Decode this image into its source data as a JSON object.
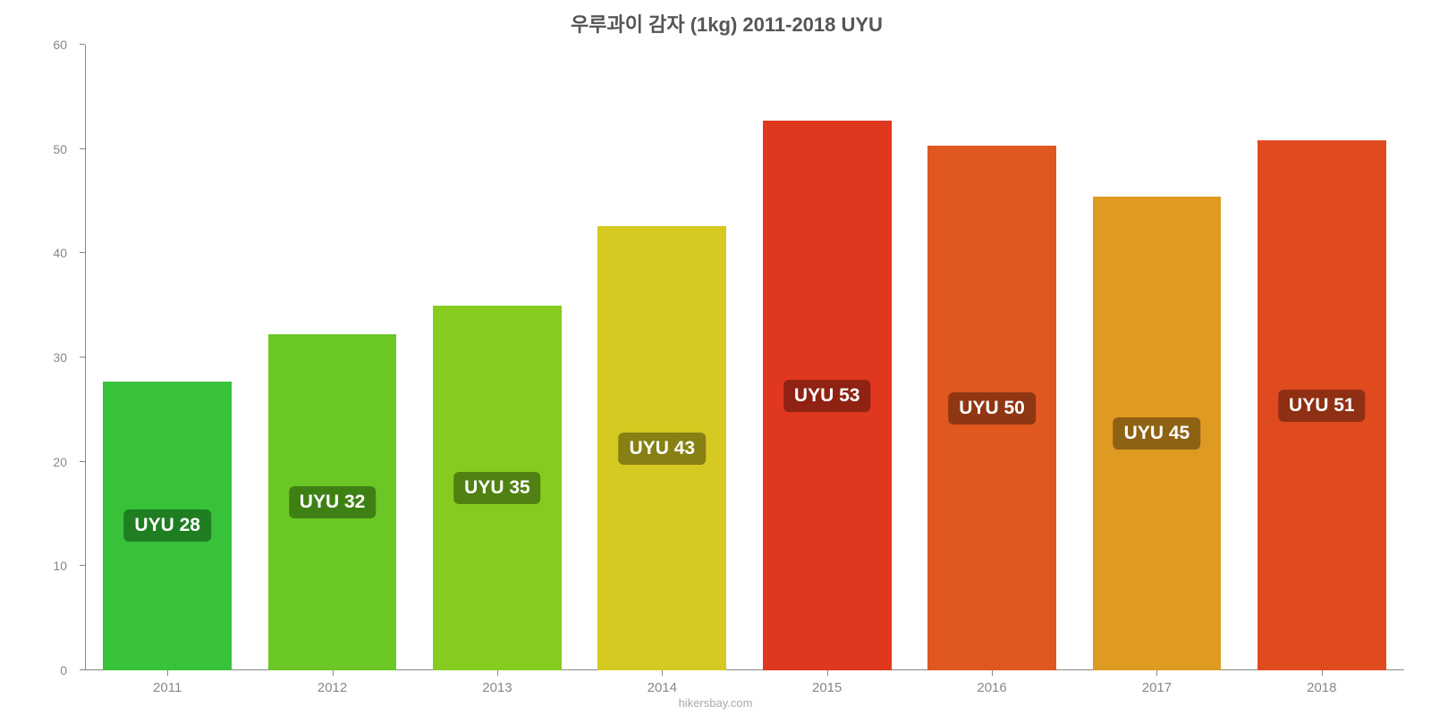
{
  "chart": {
    "type": "bar",
    "title": "우루과이 감자 (1kg) 2011-2018 UYU",
    "title_fontsize": 22,
    "title_color": "#555555",
    "background_color": "#ffffff",
    "axis_color": "#888888",
    "tick_fontsize": 14,
    "tick_color": "#888888",
    "ylim": [
      0,
      60
    ],
    "ytick_step": 10,
    "yticks": [
      0,
      10,
      20,
      30,
      40,
      50,
      60
    ],
    "categories": [
      "2011",
      "2012",
      "2013",
      "2014",
      "2015",
      "2016",
      "2017",
      "2018"
    ],
    "values": [
      27.7,
      32.2,
      35.0,
      42.6,
      52.7,
      50.3,
      45.4,
      50.8
    ],
    "value_labels": [
      "UYU 28",
      "UYU 32",
      "UYU 35",
      "UYU 43",
      "UYU 53",
      "UYU 50",
      "UYU 45",
      "UYU 51"
    ],
    "bar_colors": [
      "#38c23a",
      "#6ac725",
      "#85cb20",
      "#d5ca21",
      "#e0371f",
      "#e05720",
      "#df9a21",
      "#e04a1f"
    ],
    "label_bg_colors": [
      "#1e7e21",
      "#3f8014",
      "#508112",
      "#878113",
      "#8f2213",
      "#8f3713",
      "#8e6213",
      "#8f2f13"
    ],
    "label_fontsize": 21,
    "label_color": "#ffffff",
    "bar_width_pct": 78,
    "attribution": "hikersbay.com",
    "attribution_color": "#aaaaaa",
    "attribution_fontsize": 13
  }
}
